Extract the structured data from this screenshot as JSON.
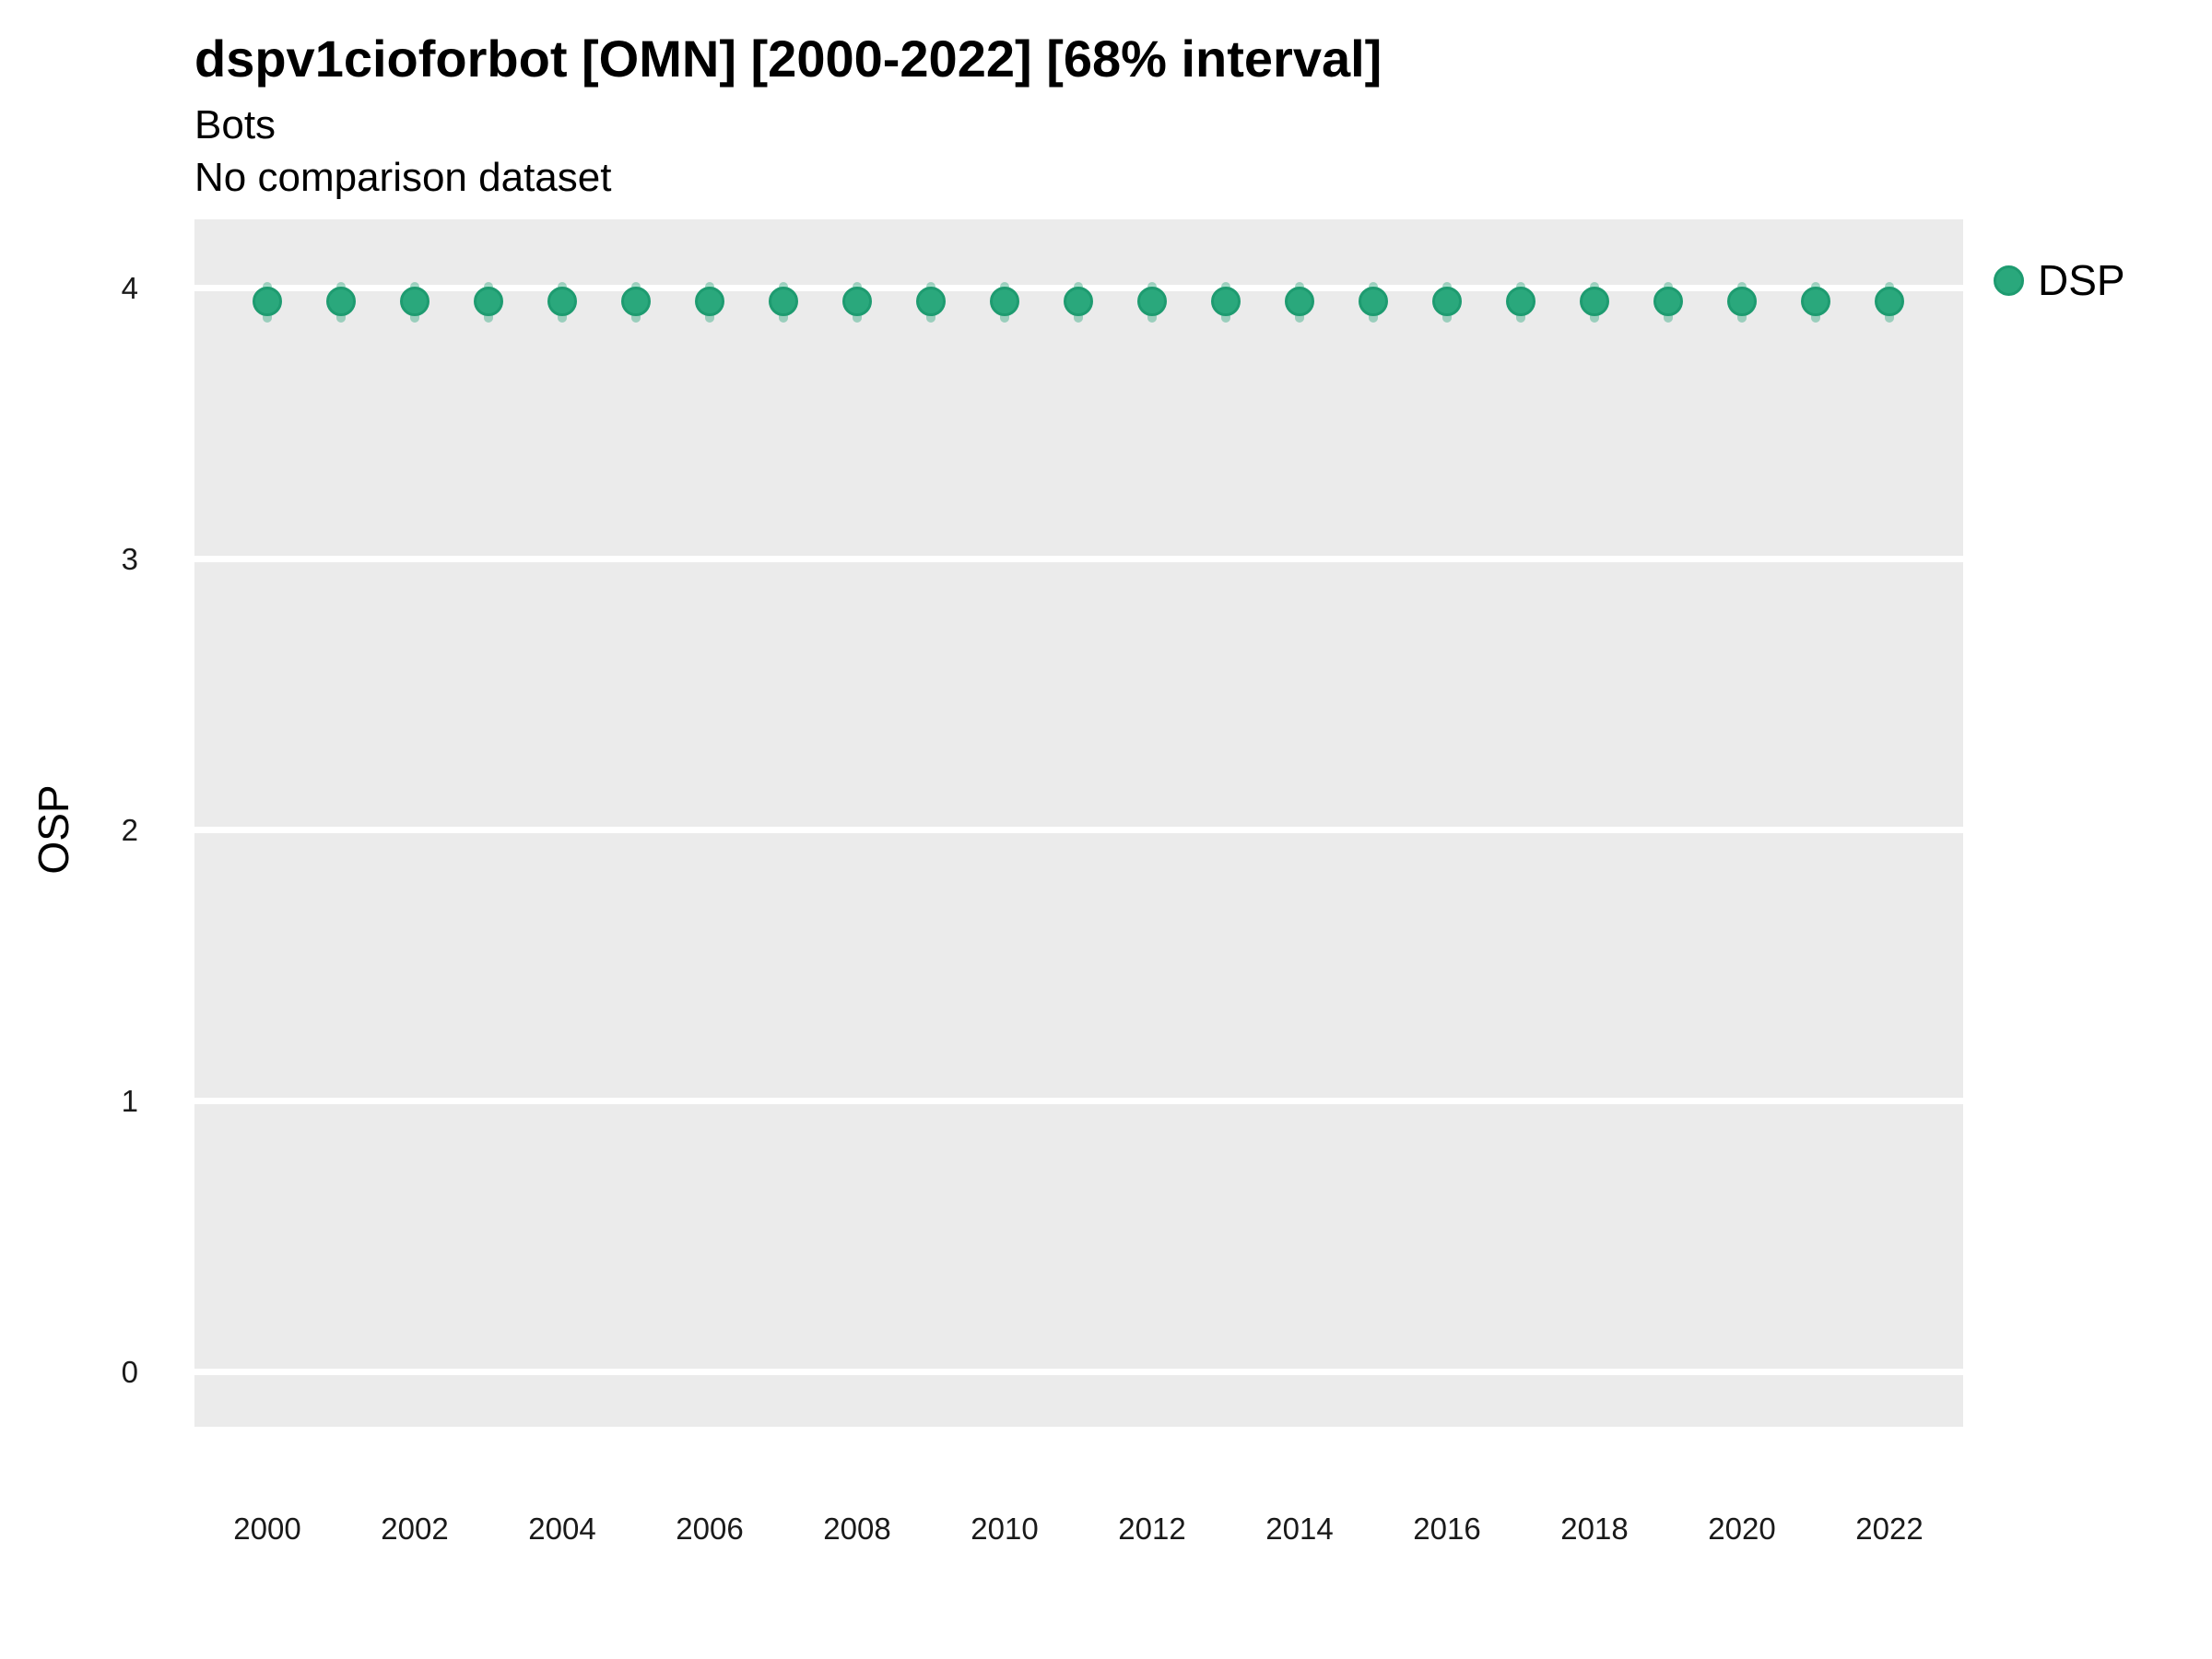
{
  "chart_data": {
    "type": "scatter",
    "title": "dspv1cioforbot [OMN] [2000-2022] [68% interval]",
    "subtitle": "Bots",
    "subtitle2": "No comparison dataset",
    "ylabel": "OSP",
    "xlabel": "",
    "x": [
      2000,
      2001,
      2002,
      2003,
      2004,
      2005,
      2006,
      2007,
      2008,
      2009,
      2010,
      2011,
      2012,
      2013,
      2014,
      2015,
      2016,
      2017,
      2018,
      2019,
      2020,
      2021,
      2022
    ],
    "series": [
      {
        "name": "DSP",
        "color": "#2aa87c",
        "stroke_color": "#1e9b70",
        "interval_color": "rgba(42,168,124,0.42)",
        "values": [
          3.95,
          3.95,
          3.95,
          3.95,
          3.95,
          3.95,
          3.95,
          3.95,
          3.95,
          3.95,
          3.95,
          3.95,
          3.95,
          3.95,
          3.95,
          3.95,
          3.95,
          3.95,
          3.95,
          3.95,
          3.95,
          3.95,
          3.95
        ],
        "interval_low": [
          3.87,
          3.87,
          3.87,
          3.87,
          3.87,
          3.87,
          3.87,
          3.87,
          3.87,
          3.87,
          3.87,
          3.87,
          3.87,
          3.87,
          3.87,
          3.87,
          3.87,
          3.87,
          3.87,
          3.87,
          3.87,
          3.87,
          3.87
        ],
        "interval_high": [
          4.02,
          4.02,
          4.02,
          4.02,
          4.02,
          4.02,
          4.02,
          4.02,
          4.02,
          4.02,
          4.02,
          4.02,
          4.02,
          4.02,
          4.02,
          4.02,
          4.02,
          4.02,
          4.02,
          4.02,
          4.02,
          4.02,
          4.02
        ]
      }
    ],
    "interval_label": "68% interval",
    "yticks": [
      0,
      1,
      2,
      3,
      4
    ],
    "xticks": [
      2000,
      2002,
      2004,
      2006,
      2008,
      2010,
      2012,
      2014,
      2016,
      2018,
      2020,
      2022
    ],
    "ylim": [
      -0.25,
      4.25
    ],
    "grid": "major-horizontal",
    "legend_position": "right",
    "panel_background": "#ebebeb",
    "gridline_color": "#ffffff"
  }
}
